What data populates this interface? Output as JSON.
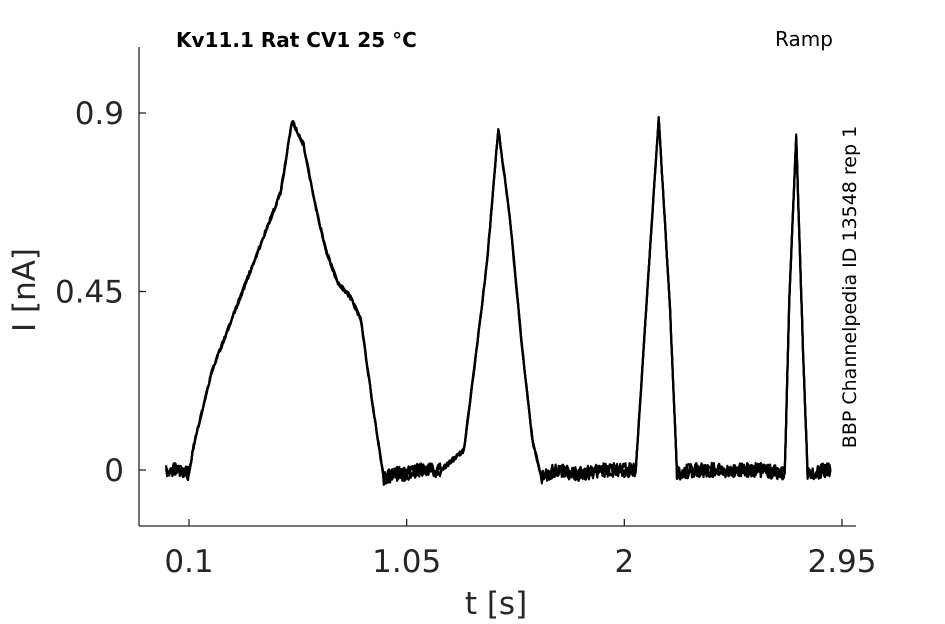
{
  "chart_data": {
    "type": "line",
    "title": "Kv11.1  Rat  CV1  25 °C",
    "protocol": "Ramp",
    "source_label": "BBP Channelpedia ID 13548 rep 1",
    "xlabel": "t [s]",
    "ylabel": "I [nA]",
    "xlim": [
      -0.1,
      3.0
    ],
    "ylim": [
      -0.14,
      1.07
    ],
    "xticks": [
      0.1,
      1.05,
      2,
      2.95
    ],
    "xtick_labels": [
      "0.1",
      "1.05",
      "2",
      "2.95"
    ],
    "yticks": [
      0,
      0.45,
      0.9
    ],
    "ytick_labels": [
      "0",
      "0.45",
      "0.9"
    ],
    "grid": false,
    "line_color": "#000000",
    "series": [
      {
        "x": [
          -0.0,
          0.06,
          0.1,
          0.12,
          0.2,
          0.3,
          0.4,
          0.5,
          0.55,
          0.6,
          0.65,
          0.7,
          0.75,
          0.8,
          0.85,
          0.9,
          0.95,
          1.0,
          1.04,
          1.1,
          1.2,
          1.3,
          1.35,
          1.4,
          1.45,
          1.5,
          1.55,
          1.6,
          1.64,
          1.7,
          1.8,
          1.9,
          2.05,
          2.1,
          2.15,
          2.2,
          2.23,
          2.3,
          2.4,
          2.6,
          2.7,
          2.72,
          2.75,
          2.78,
          2.8,
          2.88,
          2.9
        ],
        "values": [
          0.0,
          0.0,
          -0.01,
          0.06,
          0.25,
          0.4,
          0.55,
          0.7,
          0.88,
          0.82,
          0.67,
          0.55,
          0.47,
          0.44,
          0.38,
          0.17,
          -0.02,
          -0.01,
          -0.01,
          0.0,
          0.0,
          0.05,
          0.28,
          0.52,
          0.86,
          0.64,
          0.33,
          0.07,
          -0.02,
          0.0,
          -0.01,
          0.0,
          0.0,
          0.45,
          0.89,
          0.4,
          -0.01,
          0.0,
          0.0,
          0.0,
          -0.01,
          0.43,
          0.84,
          0.3,
          -0.01,
          0.0,
          0.0
        ]
      }
    ]
  }
}
